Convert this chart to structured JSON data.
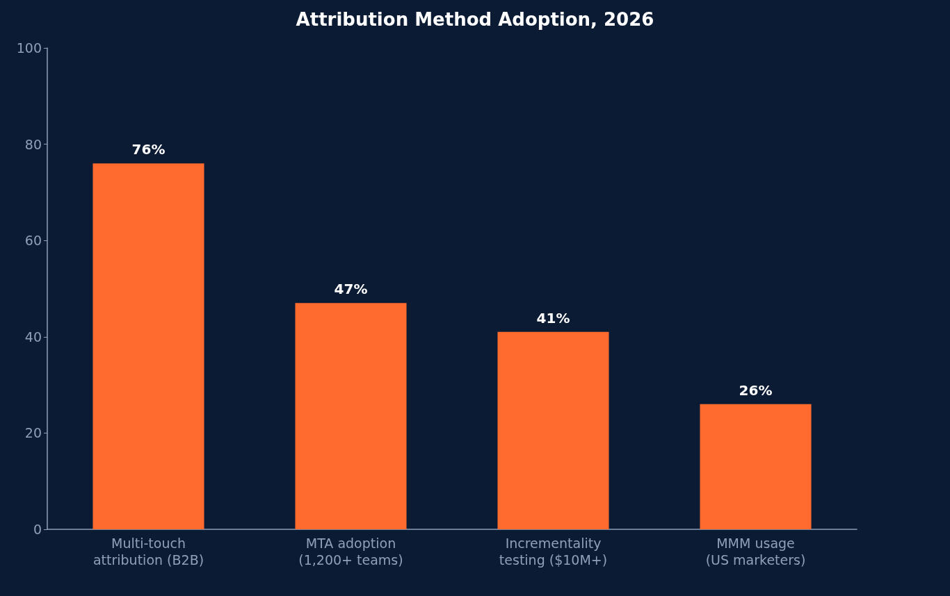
{
  "chart_data": {
    "type": "bar",
    "title": "Attribution Method Adoption, 2026",
    "categories": [
      "Multi-touch\nattribution (B2B)",
      "MTA adoption\n(1,200+ teams)",
      "Incrementality\ntesting ($10M+)",
      "MMM usage\n(US marketers)"
    ],
    "values": [
      76,
      47,
      41,
      26
    ],
    "color": "#ff6b2e",
    "value_labels": [
      "76%",
      "47%",
      "41%",
      "26%"
    ],
    "ylim": [
      0,
      100
    ],
    "yticks": [
      0,
      20,
      40,
      60,
      80,
      100
    ],
    "grid": false
  }
}
